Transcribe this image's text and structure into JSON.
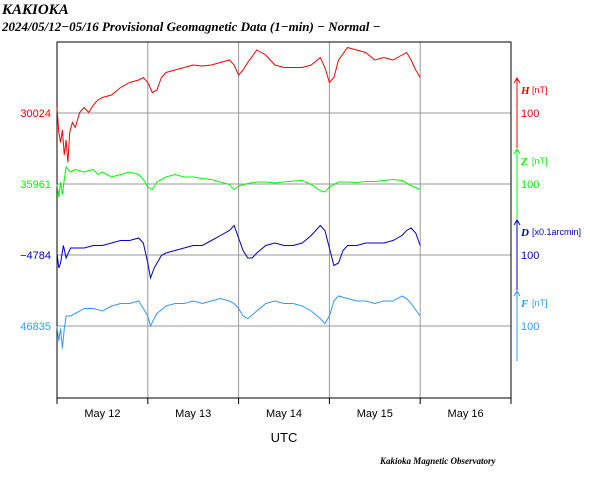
{
  "header": {
    "title": "KAKIOKA",
    "subtitle": "2024/05/12−05/16  Provisional Geomagnetic Data (1−min)  − Normal −"
  },
  "footer": {
    "credit": "Kakioka Magnetic Observatory"
  },
  "chart_data": {
    "type": "line",
    "xlabel": "UTC",
    "x_tick_labels": [
      "May 12",
      "May 13",
      "May 14",
      "May 15",
      "May 16"
    ],
    "xlim_days": [
      0,
      5
    ],
    "grid": true,
    "series": [
      {
        "name": "H",
        "unit": "[nT]",
        "color": "#ff0000",
        "baseline_label": "30024",
        "scale_label": "100",
        "points": [
          [
            0.0,
            30035
          ],
          [
            0.02,
            29985
          ],
          [
            0.04,
            29965
          ],
          [
            0.06,
            29990
          ],
          [
            0.08,
            29940
          ],
          [
            0.1,
            29970
          ],
          [
            0.12,
            29925
          ],
          [
            0.14,
            29985
          ],
          [
            0.17,
            30005
          ],
          [
            0.2,
            29995
          ],
          [
            0.25,
            30025
          ],
          [
            0.3,
            30035
          ],
          [
            0.35,
            30025
          ],
          [
            0.4,
            30040
          ],
          [
            0.45,
            30050
          ],
          [
            0.5,
            30055
          ],
          [
            0.6,
            30060
          ],
          [
            0.7,
            30075
          ],
          [
            0.8,
            30085
          ],
          [
            0.9,
            30090
          ],
          [
            0.95,
            30095
          ],
          [
            1.0,
            30085
          ],
          [
            1.05,
            30065
          ],
          [
            1.1,
            30070
          ],
          [
            1.15,
            30095
          ],
          [
            1.2,
            30105
          ],
          [
            1.3,
            30110
          ],
          [
            1.4,
            30115
          ],
          [
            1.5,
            30120
          ],
          [
            1.6,
            30118
          ],
          [
            1.7,
            30120
          ],
          [
            1.8,
            30125
          ],
          [
            1.9,
            30130
          ],
          [
            1.95,
            30120
          ],
          [
            2.0,
            30100
          ],
          [
            2.05,
            30110
          ],
          [
            2.1,
            30125
          ],
          [
            2.2,
            30150
          ],
          [
            2.3,
            30140
          ],
          [
            2.4,
            30120
          ],
          [
            2.5,
            30115
          ],
          [
            2.6,
            30115
          ],
          [
            2.7,
            30115
          ],
          [
            2.8,
            30120
          ],
          [
            2.9,
            30135
          ],
          [
            2.95,
            30115
          ],
          [
            3.0,
            30085
          ],
          [
            3.05,
            30095
          ],
          [
            3.1,
            30130
          ],
          [
            3.2,
            30155
          ],
          [
            3.3,
            30150
          ],
          [
            3.4,
            30145
          ],
          [
            3.5,
            30130
          ],
          [
            3.6,
            30135
          ],
          [
            3.7,
            30130
          ],
          [
            3.8,
            30140
          ],
          [
            3.85,
            30145
          ],
          [
            3.9,
            30130
          ],
          [
            3.95,
            30110
          ],
          [
            4.0,
            30095
          ]
        ]
      },
      {
        "name": "Z",
        "unit": "[nT]",
        "color": "#00ff00",
        "baseline_label": "35961",
        "scale_label": "100",
        "points": [
          [
            0.0,
            35960
          ],
          [
            0.02,
            35935
          ],
          [
            0.04,
            35965
          ],
          [
            0.06,
            35940
          ],
          [
            0.08,
            35970
          ],
          [
            0.1,
            35995
          ],
          [
            0.15,
            35985
          ],
          [
            0.2,
            35990
          ],
          [
            0.3,
            35985
          ],
          [
            0.4,
            35990
          ],
          [
            0.45,
            35980
          ],
          [
            0.5,
            35985
          ],
          [
            0.6,
            35975
          ],
          [
            0.7,
            35980
          ],
          [
            0.8,
            35985
          ],
          [
            0.9,
            35980
          ],
          [
            0.95,
            35970
          ],
          [
            1.0,
            35955
          ],
          [
            1.05,
            35950
          ],
          [
            1.1,
            35965
          ],
          [
            1.2,
            35975
          ],
          [
            1.3,
            35980
          ],
          [
            1.4,
            35975
          ],
          [
            1.5,
            35975
          ],
          [
            1.6,
            35972
          ],
          [
            1.7,
            35970
          ],
          [
            1.8,
            35965
          ],
          [
            1.9,
            35960
          ],
          [
            1.95,
            35950
          ],
          [
            2.0,
            35957
          ],
          [
            2.1,
            35962
          ],
          [
            2.2,
            35965
          ],
          [
            2.3,
            35965
          ],
          [
            2.4,
            35963
          ],
          [
            2.5,
            35965
          ],
          [
            2.6,
            35967
          ],
          [
            2.7,
            35968
          ],
          [
            2.8,
            35960
          ],
          [
            2.9,
            35948
          ],
          [
            2.95,
            35945
          ],
          [
            3.0,
            35955
          ],
          [
            3.1,
            35965
          ],
          [
            3.2,
            35965
          ],
          [
            3.3,
            35964
          ],
          [
            3.4,
            35966
          ],
          [
            3.5,
            35966
          ],
          [
            3.6,
            35968
          ],
          [
            3.7,
            35970
          ],
          [
            3.8,
            35968
          ],
          [
            3.9,
            35958
          ],
          [
            4.0,
            35950
          ]
        ]
      },
      {
        "name": "D",
        "unit": "[x0.1arcmin]",
        "color": "#0000cc",
        "baseline_label": "−4784",
        "scale_label": "100",
        "points": [
          [
            0.0,
            -4780
          ],
          [
            0.02,
            -4810
          ],
          [
            0.04,
            -4800
          ],
          [
            0.07,
            -4765
          ],
          [
            0.1,
            -4790
          ],
          [
            0.15,
            -4770
          ],
          [
            0.2,
            -4770
          ],
          [
            0.3,
            -4770
          ],
          [
            0.4,
            -4765
          ],
          [
            0.5,
            -4765
          ],
          [
            0.6,
            -4760
          ],
          [
            0.7,
            -4755
          ],
          [
            0.8,
            -4755
          ],
          [
            0.9,
            -4750
          ],
          [
            0.95,
            -4760
          ],
          [
            1.0,
            -4800
          ],
          [
            1.03,
            -4830
          ],
          [
            1.07,
            -4810
          ],
          [
            1.15,
            -4785
          ],
          [
            1.2,
            -4780
          ],
          [
            1.3,
            -4775
          ],
          [
            1.4,
            -4770
          ],
          [
            1.5,
            -4765
          ],
          [
            1.6,
            -4765
          ],
          [
            1.7,
            -4755
          ],
          [
            1.8,
            -4745
          ],
          [
            1.9,
            -4735
          ],
          [
            1.95,
            -4725
          ],
          [
            2.0,
            -4750
          ],
          [
            2.05,
            -4775
          ],
          [
            2.1,
            -4790
          ],
          [
            2.15,
            -4790
          ],
          [
            2.2,
            -4780
          ],
          [
            2.3,
            -4765
          ],
          [
            2.4,
            -4760
          ],
          [
            2.5,
            -4765
          ],
          [
            2.6,
            -4765
          ],
          [
            2.7,
            -4760
          ],
          [
            2.8,
            -4745
          ],
          [
            2.9,
            -4725
          ],
          [
            2.95,
            -4735
          ],
          [
            3.0,
            -4770
          ],
          [
            3.05,
            -4805
          ],
          [
            3.1,
            -4800
          ],
          [
            3.15,
            -4775
          ],
          [
            3.2,
            -4765
          ],
          [
            3.3,
            -4765
          ],
          [
            3.4,
            -4760
          ],
          [
            3.5,
            -4760
          ],
          [
            3.6,
            -4760
          ],
          [
            3.7,
            -4755
          ],
          [
            3.8,
            -4745
          ],
          [
            3.85,
            -4735
          ],
          [
            3.9,
            -4730
          ],
          [
            3.95,
            -4740
          ],
          [
            4.0,
            -4765
          ]
        ]
      },
      {
        "name": "F",
        "unit": "[nT]",
        "color": "#3399ff",
        "baseline_label": "46835",
        "scale_label": "100",
        "points": [
          [
            0.0,
            46835
          ],
          [
            0.02,
            46805
          ],
          [
            0.04,
            46830
          ],
          [
            0.06,
            46790
          ],
          [
            0.08,
            46830
          ],
          [
            0.1,
            46855
          ],
          [
            0.15,
            46855
          ],
          [
            0.2,
            46860
          ],
          [
            0.3,
            46870
          ],
          [
            0.4,
            46870
          ],
          [
            0.5,
            46865
          ],
          [
            0.6,
            46875
          ],
          [
            0.7,
            46880
          ],
          [
            0.8,
            46880
          ],
          [
            0.9,
            46885
          ],
          [
            0.95,
            46870
          ],
          [
            1.0,
            46855
          ],
          [
            1.03,
            46835
          ],
          [
            1.07,
            46850
          ],
          [
            1.1,
            46860
          ],
          [
            1.2,
            46875
          ],
          [
            1.3,
            46880
          ],
          [
            1.4,
            46880
          ],
          [
            1.5,
            46885
          ],
          [
            1.6,
            46880
          ],
          [
            1.7,
            46885
          ],
          [
            1.8,
            46890
          ],
          [
            1.9,
            46885
          ],
          [
            1.95,
            46880
          ],
          [
            2.0,
            46870
          ],
          [
            2.05,
            46855
          ],
          [
            2.1,
            46850
          ],
          [
            2.2,
            46865
          ],
          [
            2.3,
            46880
          ],
          [
            2.4,
            46885
          ],
          [
            2.5,
            46880
          ],
          [
            2.6,
            46880
          ],
          [
            2.7,
            46875
          ],
          [
            2.8,
            46865
          ],
          [
            2.9,
            46850
          ],
          [
            2.95,
            46840
          ],
          [
            3.0,
            46855
          ],
          [
            3.05,
            46885
          ],
          [
            3.1,
            46895
          ],
          [
            3.2,
            46890
          ],
          [
            3.3,
            46885
          ],
          [
            3.4,
            46885
          ],
          [
            3.5,
            46880
          ],
          [
            3.6,
            46885
          ],
          [
            3.7,
            46885
          ],
          [
            3.8,
            46895
          ],
          [
            3.85,
            46890
          ],
          [
            3.9,
            46880
          ],
          [
            4.0,
            46855
          ]
        ]
      }
    ]
  }
}
